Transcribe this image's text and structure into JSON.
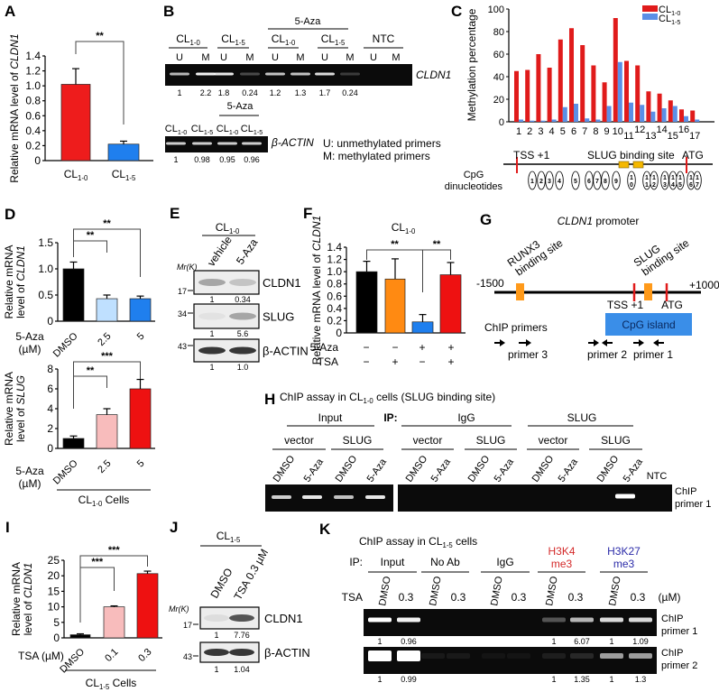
{
  "figure": {
    "A": {
      "letter": "A"
    },
    "B": {
      "letter": "B",
      "aza": "5-Aza",
      "groups": [
        "CL1-0",
        "CL1-5",
        "CL1-0",
        "CL1-5",
        "NTC"
      ],
      "lanes": [
        "U",
        "M",
        "U",
        "M",
        "U",
        "M",
        "U",
        "M",
        "U",
        "M"
      ],
      "gene": "CLDN1",
      "values": [
        "1",
        "2.2",
        "1.8",
        "0.24",
        "1.2",
        "1.3",
        "1.7",
        "0.24"
      ],
      "actin_aza": "5-Aza",
      "actin_lanes": [
        "CL1-0",
        "CL1-5",
        "CL1-0",
        "CL1-5"
      ],
      "actin_gene": "β-ACTIN",
      "actin_values": [
        "1",
        "0.98",
        "0.95",
        "0.96"
      ],
      "legend": [
        "U: unmethylated primers",
        "M: methylated primers"
      ]
    },
    "C": {
      "letter": "C",
      "tss": "TSS +1",
      "slug": "SLUG binding site",
      "atg": "ATG",
      "cpg_label": [
        "CpG",
        "dinucleotides"
      ],
      "cpg_sites": [
        "1",
        "2",
        "3",
        "4",
        "5",
        "6",
        "7",
        "8",
        "9",
        "10",
        "11",
        "12",
        "13",
        "14",
        "15",
        "16",
        "17"
      ]
    },
    "D": {
      "letter": "D",
      "treatment": [
        "5-Aza",
        "(µM)"
      ],
      "group": "CL1-0 Cells"
    },
    "E": {
      "letter": "E",
      "group": "CL1-0",
      "lanes": [
        "vehicle",
        "5-Aza"
      ],
      "mr": "Mr(K)",
      "blots": [
        {
          "name": "CLDN1",
          "marker": "17",
          "values": [
            "1",
            "0.34"
          ]
        },
        {
          "name": "SLUG",
          "marker": "34",
          "values": [
            "1",
            "5.6"
          ]
        },
        {
          "name": "β-ACTIN",
          "marker": "43",
          "values": [
            "1",
            "1.0"
          ]
        }
      ]
    },
    "F": {
      "letter": "F",
      "title": "CL1-0",
      "rows": [
        {
          "label": "5-Aza",
          "signs": [
            "−",
            "−",
            "+",
            "+"
          ]
        },
        {
          "label": "TSA",
          "signs": [
            "−",
            "+",
            "−",
            "+"
          ]
        }
      ]
    },
    "G": {
      "letter": "G",
      "title_gene": "CLDN1",
      "title_rest": "promoter",
      "start": "-1500",
      "end": "+1000",
      "runx3": [
        "RUNX3",
        "binding site"
      ],
      "slug": [
        "SLUG",
        "binding site"
      ],
      "tss": "TSS +1",
      "atg": "ATG",
      "cpg_island": "CpG island",
      "chip_primers": "ChIP  primers",
      "primers": [
        "primer 3",
        "primer 2",
        "primer 1"
      ]
    },
    "H": {
      "letter": "H",
      "title": "ChIP assay in CL1-0 cells (SLUG binding site)",
      "input": "Input",
      "ip": "IP:",
      "ip_groups": [
        "IgG",
        "SLUG"
      ],
      "subgroups": [
        "vector",
        "SLUG",
        "vector",
        "SLUG",
        "vector",
        "SLUG"
      ],
      "lanes": [
        "DMSO",
        "5-Aza",
        "DMSO",
        "5-Aza",
        "DMSO",
        "5-Aza",
        "DMSO",
        "5-Aza",
        "DMSO",
        "5-Aza",
        "DMSO",
        "5-Aza"
      ],
      "ntc": "NTC",
      "primer": [
        "ChIP",
        "primer 1"
      ]
    },
    "I": {
      "letter": "I",
      "treatment": "TSA (µM)",
      "group": "CL1-5 Cells"
    },
    "J": {
      "letter": "J",
      "group": "CL1-5",
      "lanes": [
        "DMSO",
        "TSA 0.3 µM"
      ],
      "mr": "Mr(K)",
      "blots": [
        {
          "name": "CLDN1",
          "marker": "17",
          "values": [
            "1",
            "7.76"
          ]
        },
        {
          "name": "β-ACTIN",
          "marker": "43",
          "values": [
            "1",
            "1.04"
          ]
        }
      ]
    },
    "K": {
      "letter": "K",
      "title": "ChIP assay in CL1-5 cells",
      "ip": "IP:",
      "groups": [
        {
          "l1": "Input",
          "l2": "",
          "color": "#000000"
        },
        {
          "l1": "No Ab",
          "l2": "",
          "color": "#000000"
        },
        {
          "l1": "IgG",
          "l2": "",
          "color": "#000000"
        },
        {
          "l1": "H3K4",
          "l2": "me3",
          "color": "#d42a2a"
        },
        {
          "l1": "H3K27",
          "l2": "me3",
          "color": "#2a2aa8"
        }
      ],
      "tsa": "TSA",
      "lanes": [
        "DMSO",
        "0.3",
        "DMSO",
        "0.3",
        "DMSO",
        "0.3",
        "DMSO",
        "0.3",
        "DMSO",
        "0.3"
      ],
      "unit": "(µM)",
      "primers": [
        {
          "label": [
            "ChIP",
            "primer 1"
          ],
          "values": [
            "1",
            "0.96",
            "",
            "",
            "",
            "",
            "1",
            "6.07",
            "1",
            "1.09"
          ]
        },
        {
          "label": [
            "ChIP",
            "primer 2"
          ],
          "values": [
            "1",
            "0.99",
            "",
            "",
            "",
            "",
            "1",
            "1.35",
            "1",
            "1.3"
          ]
        }
      ]
    }
  },
  "chart_data": [
    {
      "panel": "A",
      "type": "bar",
      "categories": [
        "CL1-0",
        "CL1-5"
      ],
      "values": [
        1.02,
        0.22
      ],
      "errors": [
        0.21,
        0.04
      ],
      "colors": [
        "#ee1c1c",
        "#1f7fee"
      ],
      "ylabel": "Relative mRNA level of CLDN1",
      "ylim": [
        0,
        1.4
      ],
      "yticks": [
        0,
        0.2,
        0.4,
        0.6,
        0.8,
        1.0,
        1.2,
        1.4
      ],
      "ytick_labels": [
        "0",
        "0.2",
        "0.4",
        "0.6",
        "0.8",
        "1.0",
        "1.2",
        "1.4"
      ],
      "significance": [
        {
          "pair": [
            0,
            1
          ],
          "label": "**"
        }
      ]
    },
    {
      "panel": "C",
      "type": "bar",
      "categories": [
        "1",
        "2",
        "3",
        "4",
        "5",
        "6",
        "7",
        "8",
        "9",
        "10",
        "11",
        "12",
        "13",
        "14",
        "15",
        "16",
        "17"
      ],
      "series": [
        {
          "name": "CL1-0",
          "color": "#e01b1b",
          "values": [
            45,
            46,
            60,
            48,
            73,
            83,
            68,
            50,
            35,
            92,
            54,
            50,
            27,
            25,
            19,
            11,
            10
          ]
        },
        {
          "name": "CL1-5",
          "color": "#5b8fe6",
          "values": [
            2,
            1,
            1,
            2,
            13,
            16,
            3,
            2,
            14,
            53,
            17,
            15,
            9,
            12,
            14,
            5,
            2
          ]
        }
      ],
      "ylabel": "Methylation percentage",
      "ylim": [
        0,
        100
      ],
      "yticks": [
        0,
        20,
        40,
        60,
        80,
        100
      ],
      "ytick_labels": [
        "0",
        "20",
        "40",
        "60",
        "80",
        "100"
      ],
      "legend": "top-right"
    },
    {
      "panel": "D-top",
      "type": "bar",
      "categories": [
        "DMSO",
        "2.5",
        "5"
      ],
      "values": [
        1.0,
        0.43,
        0.43
      ],
      "errors": [
        0.13,
        0.07,
        0.05
      ],
      "colors": [
        "#000000",
        "#bfe0ff",
        "#1f7fee"
      ],
      "ylabel": "Relative mRNA level of CLDN1",
      "xlabel": "5-Aza (µM)",
      "ylim": [
        0,
        1.5
      ],
      "yticks": [
        0,
        0.5,
        1.0,
        1.5
      ],
      "ytick_labels": [
        "0",
        "0.5",
        "1.0",
        "1.5"
      ],
      "significance": [
        {
          "pair": [
            0,
            1
          ],
          "label": "**"
        },
        {
          "pair": [
            0,
            2
          ],
          "label": "**"
        }
      ]
    },
    {
      "panel": "D-bottom",
      "type": "bar",
      "categories": [
        "DMSO",
        "2.5",
        "5"
      ],
      "values": [
        1.0,
        3.4,
        6.0
      ],
      "errors": [
        0.25,
        0.6,
        0.95
      ],
      "colors": [
        "#000000",
        "#f8bcbc",
        "#ee1111"
      ],
      "ylabel": "Relative mRNA level of SLUG",
      "xlabel": "5-Aza (µM)",
      "ylim": [
        0,
        8
      ],
      "yticks": [
        0,
        2,
        4,
        6,
        8
      ],
      "ytick_labels": [
        "0",
        "2",
        "4",
        "6",
        "8"
      ],
      "significance": [
        {
          "pair": [
            0,
            1
          ],
          "label": "**"
        },
        {
          "pair": [
            0,
            2
          ],
          "label": "***"
        }
      ]
    },
    {
      "panel": "F",
      "type": "bar",
      "categories": [
        "−/−",
        "−/+",
        "+/−",
        "+/+"
      ],
      "values": [
        1.0,
        0.88,
        0.18,
        0.95
      ],
      "errors": [
        0.17,
        0.33,
        0.12,
        0.2
      ],
      "colors": [
        "#000000",
        "#ff8a12",
        "#1f7fee",
        "#ee1111"
      ],
      "ylabel": "Relative mRNA level of CLDN1",
      "ylim": [
        0,
        1.4
      ],
      "yticks": [
        0,
        0.2,
        0.4,
        0.6,
        0.8,
        1.0,
        1.2,
        1.4
      ],
      "ytick_labels": [
        "0",
        "0.2",
        "0.4",
        "0.6",
        "0.8",
        "1.0",
        "1.2",
        "1.4"
      ],
      "significance": [
        {
          "pair": [
            0,
            2
          ],
          "label": "**"
        },
        {
          "pair": [
            2,
            3
          ],
          "label": "**"
        }
      ]
    },
    {
      "panel": "I",
      "type": "bar",
      "categories": [
        "DMSO",
        "0.1",
        "0.3"
      ],
      "values": [
        1.0,
        10.0,
        20.7
      ],
      "errors": [
        0.3,
        0.3,
        0.8
      ],
      "colors": [
        "#000000",
        "#f8bcbc",
        "#ee1111"
      ],
      "ylabel": "Relative mRNA level of CLDN1",
      "xlabel": "TSA (µM)",
      "ylim": [
        0,
        25
      ],
      "yticks": [
        0,
        5,
        10,
        15,
        20,
        25
      ],
      "ytick_labels": [
        "0",
        "5",
        "10",
        "15",
        "20",
        "25"
      ],
      "significance": [
        {
          "pair": [
            0,
            1
          ],
          "label": "***"
        },
        {
          "pair": [
            0,
            2
          ],
          "label": "***"
        }
      ]
    }
  ]
}
